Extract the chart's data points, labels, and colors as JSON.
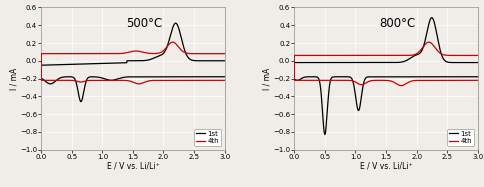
{
  "title_left": "500°C",
  "title_right": "800°C",
  "xlabel": "E / V vs. Li/Li⁺",
  "ylabel": "I / mA",
  "xlim": [
    0.0,
    3.0
  ],
  "ylim": [
    -1.0,
    0.6
  ],
  "yticks": [
    -1.0,
    -0.8,
    -0.6,
    -0.4,
    -0.2,
    0.0,
    0.2,
    0.4,
    0.6
  ],
  "xticks": [
    0.0,
    0.5,
    1.0,
    1.5,
    2.0,
    2.5,
    3.0
  ],
  "legend_labels": [
    "1st",
    "4th"
  ],
  "colors": [
    "#000000",
    "#cc0000"
  ],
  "bg_color": "#f0ede8",
  "grid_color": "#ffffff",
  "linewidth": 0.9,
  "tick_labelsize": 5.0,
  "label_fontsize": 5.5,
  "title_fontsize": 8.5
}
